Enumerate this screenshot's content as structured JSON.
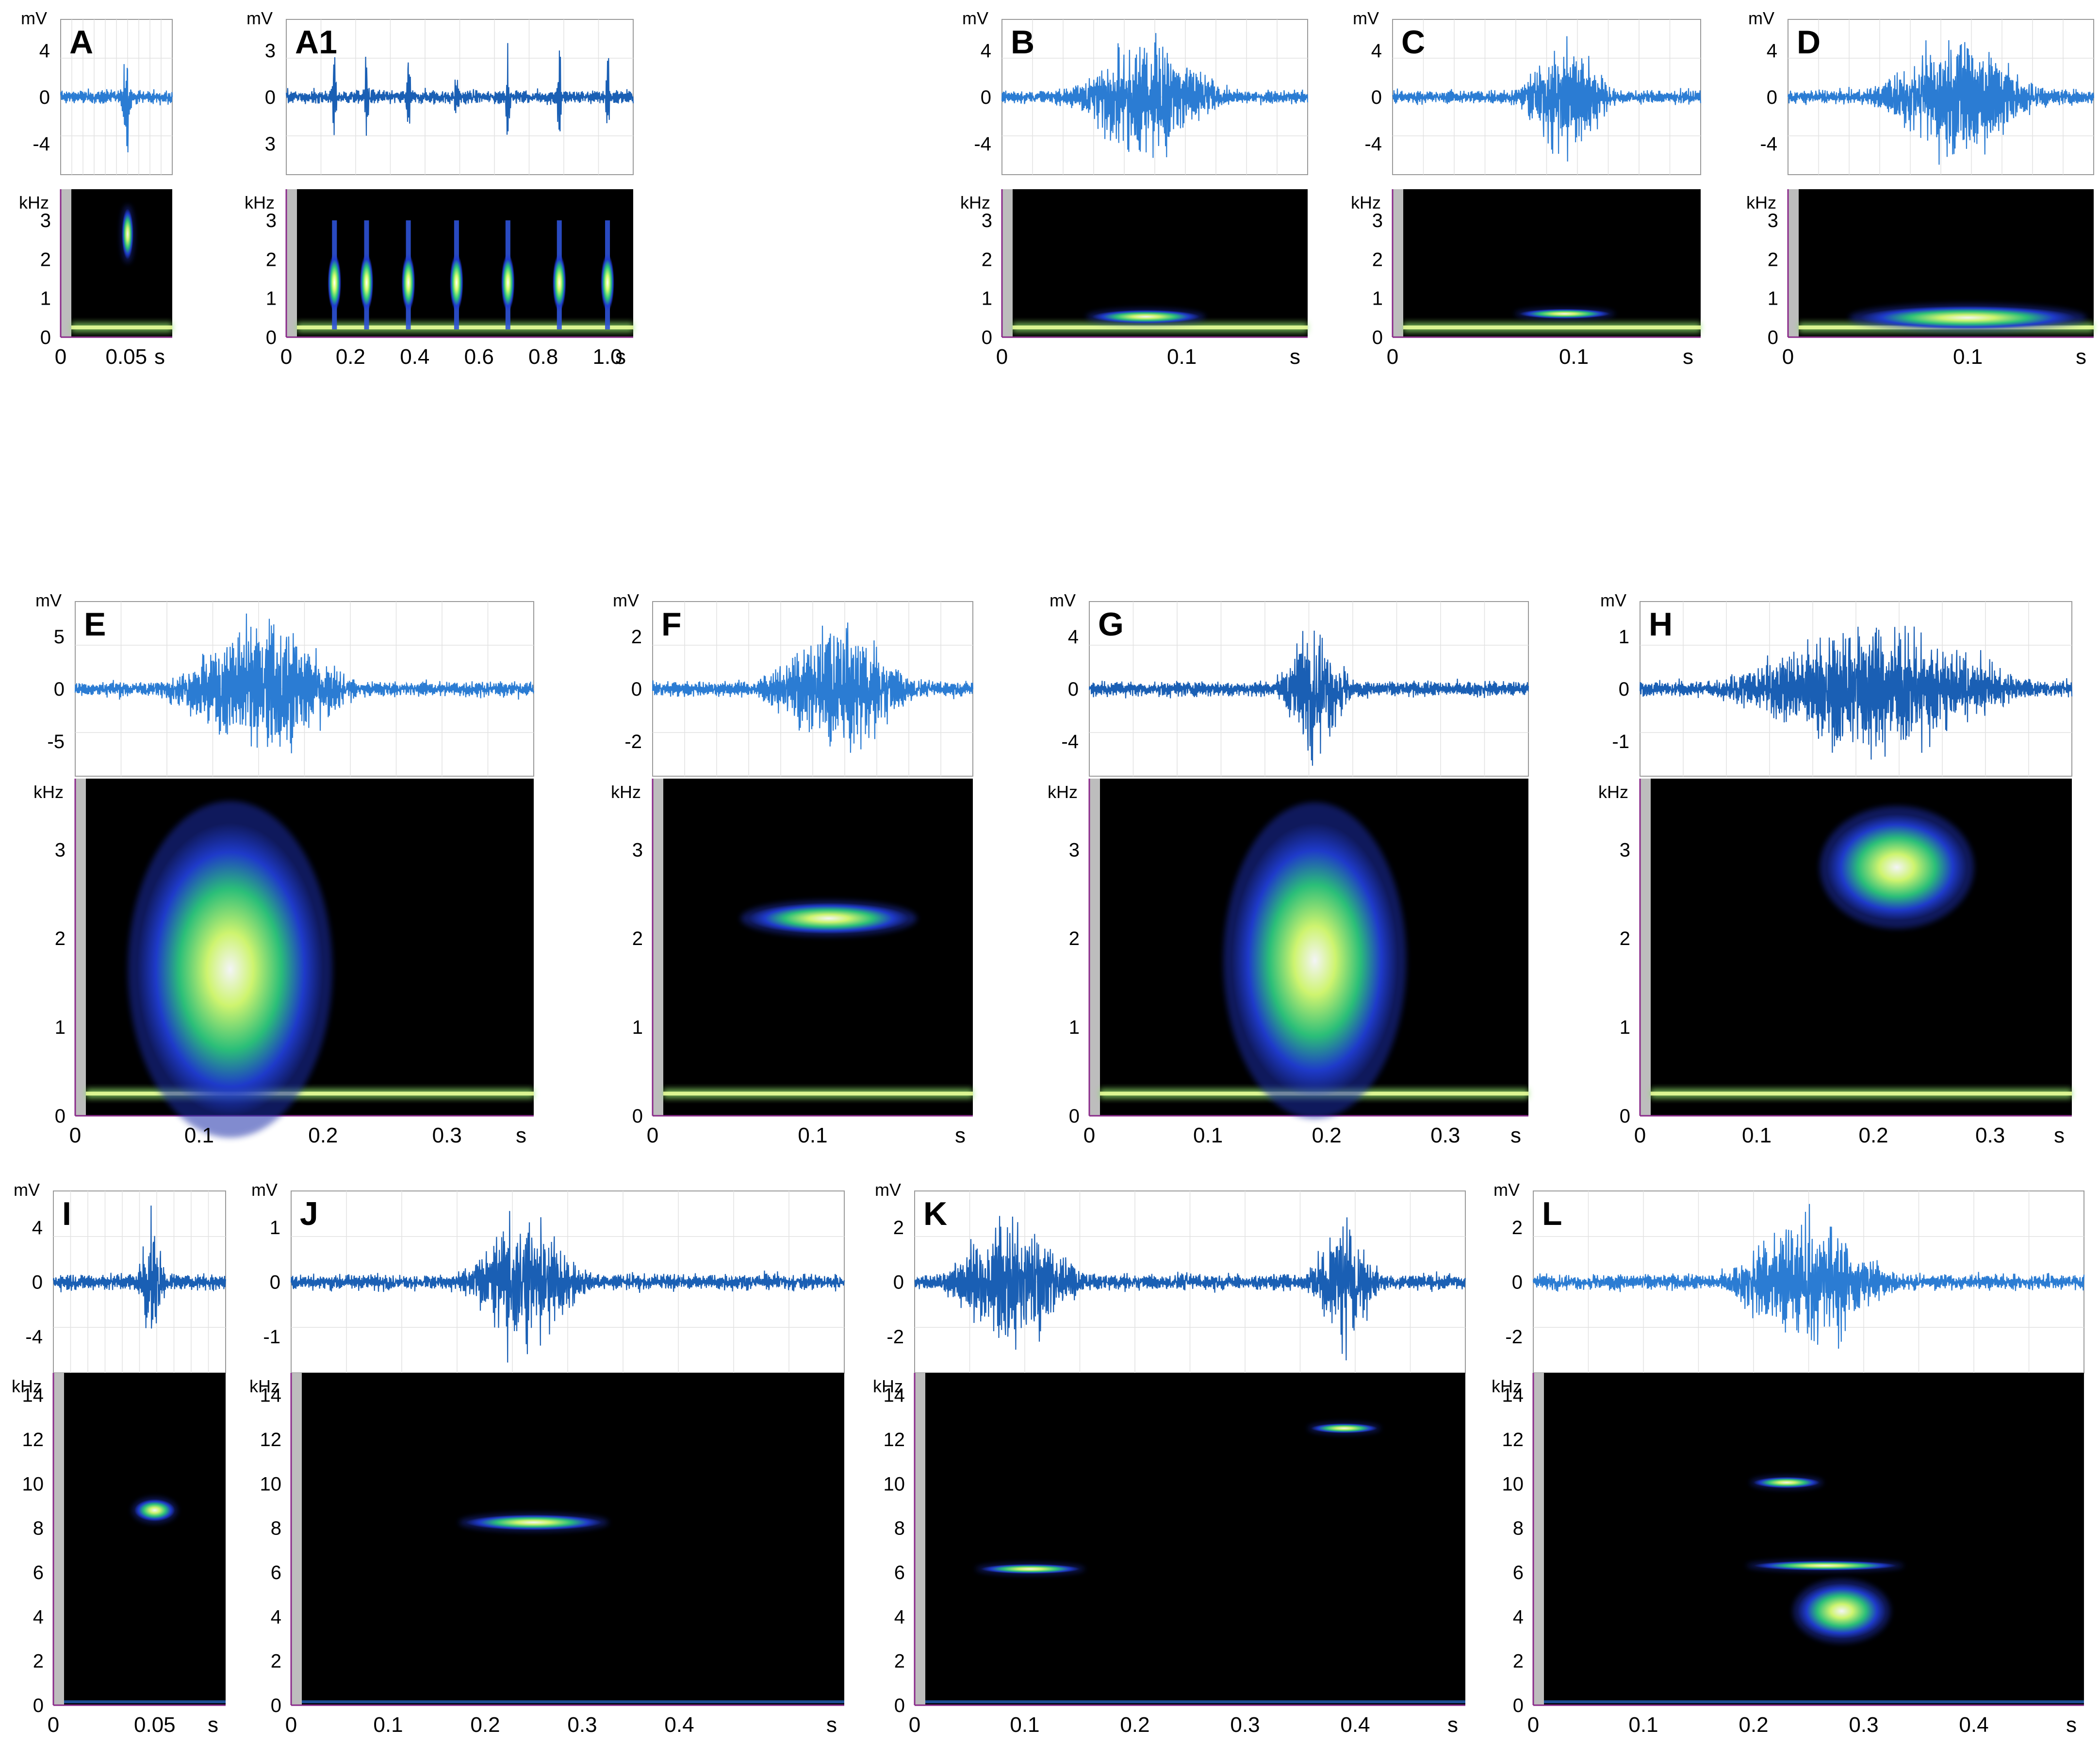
{
  "figure": {
    "panels": [
      {
        "id": "A",
        "label": "A",
        "wave_yticks": [
          "4",
          "0",
          "-4"
        ],
        "spec_yticks": [
          "3",
          "2",
          "1",
          "0"
        ],
        "xticks": [
          [
            "0",
            "0"
          ],
          [
            "0.05",
            "0.05"
          ]
        ],
        "xunit": "s",
        "amp": "mV",
        "freq": "kHz",
        "duration": 0.085
      },
      {
        "id": "A1",
        "label": "A1",
        "wave_yticks": [
          "3",
          "0",
          "3"
        ],
        "spec_yticks": [
          "3",
          "2",
          "1",
          "0"
        ],
        "xticks": [
          [
            "0",
            "0"
          ],
          [
            "0.2",
            "0.2"
          ],
          [
            "0.4",
            "0.4"
          ],
          [
            "0.6",
            "0.6"
          ],
          [
            "0.8",
            "0.8"
          ],
          [
            "1.0",
            "1.0"
          ]
        ],
        "xunit": "s",
        "amp": "mV",
        "freq": "kHz",
        "duration": 1.08
      },
      {
        "id": "B",
        "label": "B",
        "wave_yticks": [
          "4",
          "0",
          "-4"
        ],
        "spec_yticks": [
          "3",
          "2",
          "1",
          "0"
        ],
        "xticks": [
          [
            "0",
            "0"
          ],
          [
            "0.1",
            "0.1"
          ]
        ],
        "xunit": "s",
        "amp": "mV",
        "freq": "kHz",
        "duration": 0.17
      },
      {
        "id": "C",
        "label": "C",
        "wave_yticks": [
          "4",
          "0",
          "-4"
        ],
        "spec_yticks": [
          "3",
          "2",
          "1",
          "0"
        ],
        "xticks": [
          [
            "0",
            "0"
          ],
          [
            "0.1",
            "0.1"
          ]
        ],
        "xunit": "s",
        "amp": "mV",
        "freq": "kHz",
        "duration": 0.17
      },
      {
        "id": "D",
        "label": "D",
        "wave_yticks": [
          "4",
          "0",
          "-4"
        ],
        "spec_yticks": [
          "3",
          "2",
          "1",
          "0"
        ],
        "xticks": [
          [
            "0",
            "0"
          ],
          [
            "0.1",
            "0.1"
          ]
        ],
        "xunit": "s",
        "amp": "mV",
        "freq": "kHz",
        "duration": 0.17
      },
      {
        "id": "E",
        "label": "E",
        "wave_yticks": [
          "5",
          "0",
          "-5"
        ],
        "spec_yticks": [
          "3",
          "2",
          "1",
          "0"
        ],
        "xticks": [
          [
            "0",
            "0"
          ],
          [
            "0.1",
            "0.1"
          ],
          [
            "0.2",
            "0.2"
          ],
          [
            "0.3",
            "0.3"
          ]
        ],
        "xunit": "s",
        "amp": "mV",
        "freq": "kHz",
        "duration": 0.37
      },
      {
        "id": "F",
        "label": "F",
        "wave_yticks": [
          "2",
          "0",
          "-2"
        ],
        "spec_yticks": [
          "3",
          "2",
          "1",
          "0"
        ],
        "xticks": [
          [
            "0",
            "0"
          ],
          [
            "0.1",
            "0.1"
          ]
        ],
        "xunit": "s",
        "amp": "mV",
        "freq": "kHz",
        "duration": 0.2
      },
      {
        "id": "G",
        "label": "G",
        "wave_yticks": [
          "4",
          "0",
          "-4"
        ],
        "spec_yticks": [
          "3",
          "2",
          "1",
          "0"
        ],
        "xticks": [
          [
            "0",
            "0"
          ],
          [
            "0.1",
            "0.1"
          ],
          [
            "0.2",
            "0.2"
          ],
          [
            "0.3",
            "0.3"
          ]
        ],
        "xunit": "s",
        "amp": "mV",
        "freq": "kHz",
        "duration": 0.37
      },
      {
        "id": "H",
        "label": "H",
        "wave_yticks": [
          "1",
          "0",
          "-1"
        ],
        "spec_yticks": [
          "3",
          "2",
          "1",
          "0"
        ],
        "xticks": [
          [
            "0",
            "0"
          ],
          [
            "0.1",
            "0.1"
          ],
          [
            "0.2",
            "0.2"
          ],
          [
            "0.3",
            "0.3"
          ]
        ],
        "xunit": "s",
        "amp": "mV",
        "freq": "kHz",
        "duration": 0.37
      },
      {
        "id": "I",
        "label": "I",
        "wave_yticks": [
          "4",
          "0",
          "-4"
        ],
        "spec_yticks": [
          "14",
          "12",
          "10",
          "8",
          "6",
          "4",
          "2",
          "0"
        ],
        "xticks": [
          [
            "0",
            "0"
          ],
          [
            "0.05",
            "0.05"
          ]
        ],
        "xunit": "s",
        "amp": "mV",
        "freq": "kHz",
        "duration": 0.085
      },
      {
        "id": "J",
        "label": "J",
        "wave_yticks": [
          "1",
          "0",
          "-1"
        ],
        "spec_yticks": [
          "14",
          "12",
          "10",
          "8",
          "6",
          "4",
          "2",
          "0"
        ],
        "xticks": [
          [
            "0",
            "0"
          ],
          [
            "0.1",
            "0.1"
          ],
          [
            "0.2",
            "0.2"
          ],
          [
            "0.3",
            "0.3"
          ],
          [
            "0.4",
            "0.4"
          ]
        ],
        "xunit": "s",
        "amp": "mV",
        "freq": "kHz",
        "duration": 0.57
      },
      {
        "id": "K",
        "label": "K",
        "wave_yticks": [
          "2",
          "0",
          "-2"
        ],
        "spec_yticks": [
          "14",
          "12",
          "10",
          "8",
          "6",
          "4",
          "2",
          "0"
        ],
        "xticks": [
          [
            "0",
            "0"
          ],
          [
            "0.1",
            "0.1"
          ],
          [
            "0.2",
            "0.2"
          ],
          [
            "0.3",
            "0.3"
          ],
          [
            "0.4",
            "0.4"
          ]
        ],
        "xunit": "s",
        "amp": "mV",
        "freq": "kHz",
        "duration": 0.5
      },
      {
        "id": "L",
        "label": "L",
        "wave_yticks": [
          "2",
          "0",
          "-2"
        ],
        "spec_yticks": [
          "14",
          "12",
          "10",
          "8",
          "6",
          "4",
          "2",
          "0"
        ],
        "xticks": [
          [
            "0",
            "0"
          ],
          [
            "0.1",
            "0.1"
          ],
          [
            "0.2",
            "0.2"
          ],
          [
            "0.3",
            "0.3"
          ],
          [
            "0.4",
            "0.4"
          ]
        ],
        "xunit": "s",
        "amp": "mV",
        "freq": "kHz",
        "duration": 0.5
      }
    ]
  },
  "chart_data": [
    {
      "type": "heatmap",
      "panel": "A",
      "waveform": {
        "ylabel": "mV",
        "yticks": [
          4,
          0,
          -4
        ],
        "event": {
          "t": 0.05,
          "peak_mV": 5
        }
      },
      "spectrogram": {
        "ylabel": "kHz",
        "ylim": [
          0,
          3.8
        ],
        "xlabel": "s",
        "xlim": [
          0,
          0.085
        ],
        "events": [
          {
            "t": [
              0.048,
              0.054
            ],
            "f": [
              2.0,
              3.3
            ]
          }
        ]
      }
    },
    {
      "type": "heatmap",
      "panel": "A1",
      "waveform": {
        "ylabel": "mV",
        "yticks": [
          3,
          0,
          3
        ],
        "pulse_times_s": [
          0.15,
          0.25,
          0.38,
          0.53,
          0.69,
          0.85,
          1.0
        ]
      },
      "spectrogram": {
        "ylabel": "kHz",
        "ylim": [
          0,
          3.8
        ],
        "xlabel": "s",
        "xlim": [
          0,
          1.08
        ],
        "pulse_times_s": [
          0.15,
          0.25,
          0.38,
          0.53,
          0.69,
          0.85,
          1.0
        ],
        "pulse_f_range_kHz": [
          0.2,
          3.0
        ]
      }
    },
    {
      "type": "heatmap",
      "panel": "B",
      "waveform": {
        "ylabel": "mV",
        "yticks": [
          4,
          0,
          -4
        ],
        "burst_s": [
          0.04,
          0.12
        ]
      },
      "spectrogram": {
        "ylabel": "kHz",
        "ylim": [
          0,
          3.8
        ],
        "xlabel": "s",
        "xlim": [
          0,
          0.17
        ],
        "events": [
          {
            "t": [
              0.05,
              0.11
            ],
            "f": [
              0.35,
              0.7
            ]
          }
        ]
      }
    },
    {
      "type": "heatmap",
      "panel": "C",
      "waveform": {
        "ylabel": "mV",
        "yticks": [
          4,
          0,
          -4
        ],
        "burst_s": [
          0.07,
          0.12
        ]
      },
      "spectrogram": {
        "ylabel": "kHz",
        "ylim": [
          0,
          3.8
        ],
        "xlabel": "s",
        "xlim": [
          0,
          0.17
        ],
        "events": [
          {
            "t": [
              0.07,
              0.12
            ],
            "f": [
              0.5,
              0.7
            ]
          }
        ]
      }
    },
    {
      "type": "heatmap",
      "panel": "D",
      "waveform": {
        "ylabel": "mV",
        "yticks": [
          4,
          0,
          -4
        ],
        "burst_s": [
          0.05,
          0.14
        ]
      },
      "spectrogram": {
        "ylabel": "kHz",
        "ylim": [
          0,
          3.8
        ],
        "xlabel": "s",
        "xlim": [
          0,
          0.17
        ],
        "events": [
          {
            "t": [
              0.04,
              0.16
            ],
            "f": [
              0.2,
              0.8
            ]
          }
        ]
      }
    },
    {
      "type": "heatmap",
      "panel": "E",
      "waveform": {
        "ylabel": "mV",
        "yticks": [
          5,
          0,
          -5
        ],
        "burst_s": [
          0.08,
          0.22
        ]
      },
      "spectrogram": {
        "ylabel": "kHz",
        "ylim": [
          0,
          3.8
        ],
        "xlabel": "s",
        "xlim": [
          0,
          0.37
        ],
        "events": [
          {
            "t": [
              0.05,
              0.2
            ],
            "f": [
              0.0,
              3.3
            ]
          }
        ]
      }
    },
    {
      "type": "heatmap",
      "panel": "F",
      "waveform": {
        "ylabel": "mV",
        "yticks": [
          2,
          0,
          -2
        ],
        "burst_s": [
          0.07,
          0.16
        ]
      },
      "spectrogram": {
        "ylabel": "kHz",
        "ylim": [
          0,
          3.8
        ],
        "xlabel": "s",
        "xlim": [
          0,
          0.2
        ],
        "events": [
          {
            "t": [
              0.06,
              0.16
            ],
            "f": [
              2.05,
              2.4
            ]
          }
        ]
      }
    },
    {
      "type": "heatmap",
      "panel": "G",
      "waveform": {
        "ylabel": "mV",
        "yticks": [
          4,
          0,
          -4
        ],
        "burst_s": [
          0.16,
          0.22
        ]
      },
      "spectrogram": {
        "ylabel": "kHz",
        "ylim": [
          0,
          3.8
        ],
        "xlabel": "s",
        "xlim": [
          0,
          0.37
        ],
        "events": [
          {
            "t": [
              0.12,
              0.26
            ],
            "f": [
              0.2,
              3.3
            ]
          }
        ]
      }
    },
    {
      "type": "heatmap",
      "panel": "H",
      "waveform": {
        "ylabel": "mV",
        "yticks": [
          1,
          0,
          -1
        ],
        "burst_s": [
          0.08,
          0.32
        ]
      },
      "spectrogram": {
        "ylabel": "kHz",
        "ylim": [
          0,
          3.8
        ],
        "xlabel": "s",
        "xlim": [
          0,
          0.37
        ],
        "events": [
          {
            "t": [
              0.16,
              0.28
            ],
            "f": [
              2.2,
              3.4
            ]
          }
        ]
      }
    },
    {
      "type": "heatmap",
      "panel": "I",
      "waveform": {
        "ylabel": "mV",
        "yticks": [
          4,
          0,
          -4
        ],
        "burst_s": [
          0.042,
          0.055
        ]
      },
      "spectrogram": {
        "ylabel": "kHz",
        "ylim": [
          0,
          15
        ],
        "xlabel": "s",
        "xlim": [
          0,
          0.085
        ],
        "events": [
          {
            "t": [
              0.04,
              0.06
            ],
            "f": [
              8.3,
              9.3
            ]
          }
        ]
      }
    },
    {
      "type": "heatmap",
      "panel": "J",
      "waveform": {
        "ylabel": "mV",
        "yticks": [
          1,
          0,
          -1
        ],
        "burst_s": [
          0.18,
          0.3
        ]
      },
      "spectrogram": {
        "ylabel": "kHz",
        "ylim": [
          0,
          15
        ],
        "xlabel": "s",
        "xlim": [
          0,
          0.57
        ],
        "events": [
          {
            "t": [
              0.18,
              0.32
            ],
            "f": [
              7.9,
              8.6
            ]
          }
        ]
      }
    },
    {
      "type": "heatmap",
      "panel": "K",
      "waveform": {
        "ylabel": "mV",
        "yticks": [
          2,
          0,
          -2
        ],
        "burst_s": [
          [
            0.03,
            0.15
          ],
          [
            0.36,
            0.42
          ]
        ]
      },
      "spectrogram": {
        "ylabel": "kHz",
        "ylim": [
          0,
          15
        ],
        "xlabel": "s",
        "xlim": [
          0,
          0.5
        ],
        "events": [
          {
            "t": [
              0.06,
              0.15
            ],
            "f": [
              6.0,
              6.3
            ]
          },
          {
            "t": [
              0.36,
              0.42
            ],
            "f": [
              12.3,
              12.7
            ]
          }
        ]
      }
    },
    {
      "type": "heatmap",
      "panel": "L",
      "waveform": {
        "ylabel": "mV",
        "yticks": [
          2,
          0,
          -2
        ],
        "burst_s": [
          0.18,
          0.32
        ]
      },
      "spectrogram": {
        "ylabel": "kHz",
        "ylim": [
          0,
          15
        ],
        "xlabel": "s",
        "xlim": [
          0,
          0.5
        ],
        "events": [
          {
            "t": [
              0.2,
              0.26
            ],
            "f": [
              9.8,
              10.3
            ]
          },
          {
            "t": [
              0.2,
              0.33
            ],
            "f": [
              6.1,
              6.5
            ]
          },
          {
            "t": [
              0.24,
              0.32
            ],
            "f": [
              3.0,
              5.5
            ]
          }
        ]
      }
    }
  ]
}
